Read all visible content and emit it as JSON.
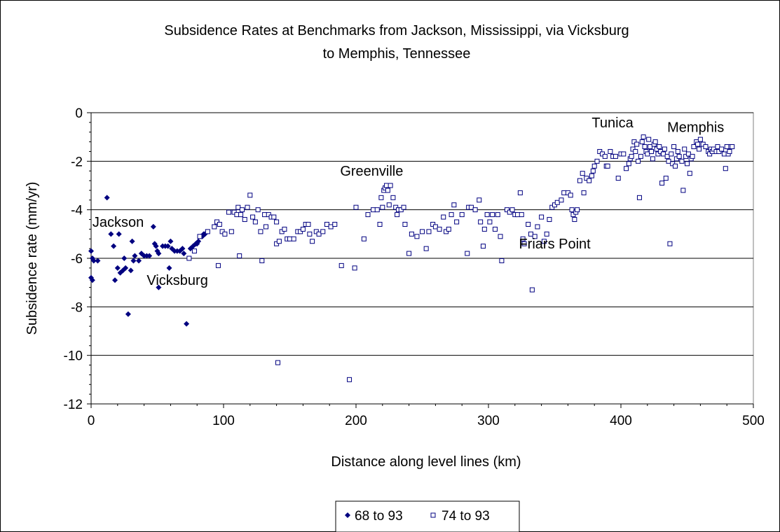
{
  "chart_data": {
    "type": "scatter",
    "title_lines": [
      "Subsidence Rates at Benchmarks from Jackson, Mississippi, via Vicksburg",
      "to Memphis, Tennessee"
    ],
    "xlabel": "Distance along level lines (km)",
    "ylabel": "Subsidence rate (mm/yr)",
    "xlim": [
      0,
      500
    ],
    "ylim": [
      -12,
      0
    ],
    "x_ticks": [
      0,
      100,
      200,
      300,
      400,
      500
    ],
    "y_ticks": [
      0,
      -2,
      -4,
      -6,
      -8,
      -10,
      -12
    ],
    "grid": "horizontal major gridlines",
    "legend_position": "bottom",
    "annotations": [
      {
        "text": "Jackson",
        "x": 1,
        "y": -4.7
      },
      {
        "text": "Vicksburg",
        "x": 42,
        "y": -7.1
      },
      {
        "text": "Greenville",
        "x": 188,
        "y": -2.6
      },
      {
        "text": "Friars Point",
        "x": 323,
        "y": -5.6
      },
      {
        "text": "Tunica",
        "x": 378,
        "y": -0.6
      },
      {
        "text": "Memphis",
        "x": 435,
        "y": -0.8
      }
    ],
    "series": [
      {
        "name": "68 to 93",
        "marker": "diamond-filled",
        "color": "#000080",
        "points": [
          [
            0,
            -5.7
          ],
          [
            1,
            -6.0
          ],
          [
            0,
            -6.8
          ],
          [
            1,
            -6.9
          ],
          [
            2,
            -6.1
          ],
          [
            5,
            -6.1
          ],
          [
            12,
            -3.5
          ],
          [
            15,
            -5.0
          ],
          [
            17,
            -5.5
          ],
          [
            18,
            -6.9
          ],
          [
            20,
            -6.4
          ],
          [
            21,
            -5.0
          ],
          [
            22,
            -6.6
          ],
          [
            24,
            -6.5
          ],
          [
            25,
            -6.0
          ],
          [
            26,
            -6.4
          ],
          [
            28,
            -8.3
          ],
          [
            30,
            -6.5
          ],
          [
            31,
            -5.3
          ],
          [
            32,
            -6.1
          ],
          [
            33,
            -5.9
          ],
          [
            36,
            -6.1
          ],
          [
            38,
            -5.8
          ],
          [
            40,
            -5.9
          ],
          [
            42,
            -5.9
          ],
          [
            44,
            -5.9
          ],
          [
            47,
            -4.7
          ],
          [
            48,
            -5.4
          ],
          [
            49,
            -5.5
          ],
          [
            50,
            -5.7
          ],
          [
            51,
            -5.8
          ],
          [
            51,
            -7.2
          ],
          [
            54,
            -5.5
          ],
          [
            56,
            -5.5
          ],
          [
            58,
            -5.5
          ],
          [
            59,
            -6.4
          ],
          [
            60,
            -5.3
          ],
          [
            61,
            -5.6
          ],
          [
            63,
            -5.7
          ],
          [
            65,
            -5.7
          ],
          [
            67,
            -5.7
          ],
          [
            69,
            -5.6
          ],
          [
            70,
            -5.8
          ],
          [
            72,
            -8.7
          ],
          [
            75,
            -5.6
          ],
          [
            77,
            -5.5
          ],
          [
            79,
            -5.4
          ],
          [
            80,
            -5.4
          ],
          [
            81,
            -5.3
          ],
          [
            83,
            -5.1
          ],
          [
            84,
            -5.1
          ],
          [
            85,
            -5.0
          ],
          [
            86,
            -5.0
          ]
        ]
      },
      {
        "name": "74 to 93",
        "marker": "square-open",
        "color": "#000080",
        "points": [
          [
            74,
            -6.0
          ],
          [
            78,
            -5.7
          ],
          [
            82,
            -5.1
          ],
          [
            88,
            -4.9
          ],
          [
            93,
            -4.7
          ],
          [
            95,
            -4.5
          ],
          [
            96,
            -6.3
          ],
          [
            97,
            -4.6
          ],
          [
            99,
            -4.9
          ],
          [
            101,
            -5.0
          ],
          [
            104,
            -4.1
          ],
          [
            106,
            -4.9
          ],
          [
            108,
            -4.1
          ],
          [
            110,
            -4.2
          ],
          [
            111,
            -3.9
          ],
          [
            112,
            -5.9
          ],
          [
            113,
            -4.2
          ],
          [
            114,
            -4.0
          ],
          [
            116,
            -4.4
          ],
          [
            118,
            -3.9
          ],
          [
            120,
            -3.4
          ],
          [
            122,
            -4.3
          ],
          [
            124,
            -4.5
          ],
          [
            126,
            -4.0
          ],
          [
            128,
            -4.9
          ],
          [
            129,
            -6.1
          ],
          [
            131,
            -4.2
          ],
          [
            132,
            -4.7
          ],
          [
            134,
            -4.2
          ],
          [
            136,
            -4.3
          ],
          [
            138,
            -4.3
          ],
          [
            140,
            -4.5
          ],
          [
            140,
            -5.4
          ],
          [
            141,
            -10.3
          ],
          [
            142,
            -5.3
          ],
          [
            144,
            -4.9
          ],
          [
            146,
            -4.8
          ],
          [
            148,
            -5.2
          ],
          [
            150,
            -5.2
          ],
          [
            153,
            -5.2
          ],
          [
            156,
            -4.9
          ],
          [
            158,
            -4.9
          ],
          [
            160,
            -4.8
          ],
          [
            162,
            -4.6
          ],
          [
            164,
            -4.6
          ],
          [
            165,
            -5.0
          ],
          [
            167,
            -5.3
          ],
          [
            170,
            -4.9
          ],
          [
            172,
            -5.0
          ],
          [
            175,
            -4.9
          ],
          [
            178,
            -4.6
          ],
          [
            181,
            -4.7
          ],
          [
            184,
            -4.6
          ],
          [
            189,
            -6.3
          ],
          [
            195,
            -11.0
          ],
          [
            199,
            -6.4
          ],
          [
            200,
            -3.9
          ],
          [
            206,
            -5.2
          ],
          [
            209,
            -4.2
          ],
          [
            213,
            -4.0
          ],
          [
            216,
            -4.0
          ],
          [
            218,
            -4.6
          ],
          [
            219,
            -3.5
          ],
          [
            220,
            -3.9
          ],
          [
            221,
            -3.2
          ],
          [
            222,
            -3.1
          ],
          [
            223,
            -3.0
          ],
          [
            224,
            -3.2
          ],
          [
            225,
            -3.8
          ],
          [
            226,
            -3.0
          ],
          [
            228,
            -3.5
          ],
          [
            230,
            -3.9
          ],
          [
            231,
            -4.2
          ],
          [
            232,
            -4.0
          ],
          [
            234,
            -4.0
          ],
          [
            236,
            -3.9
          ],
          [
            237,
            -4.6
          ],
          [
            240,
            -5.8
          ],
          [
            242,
            -5.0
          ],
          [
            246,
            -5.1
          ],
          [
            250,
            -4.9
          ],
          [
            253,
            -5.6
          ],
          [
            255,
            -4.9
          ],
          [
            258,
            -4.6
          ],
          [
            260,
            -4.7
          ],
          [
            263,
            -4.8
          ],
          [
            266,
            -4.3
          ],
          [
            268,
            -4.9
          ],
          [
            270,
            -4.8
          ],
          [
            272,
            -4.2
          ],
          [
            274,
            -3.8
          ],
          [
            276,
            -4.5
          ],
          [
            280,
            -4.2
          ],
          [
            284,
            -5.8
          ],
          [
            285,
            -3.9
          ],
          [
            287,
            -3.9
          ],
          [
            290,
            -4.0
          ],
          [
            293,
            -3.6
          ],
          [
            294,
            -4.5
          ],
          [
            296,
            -5.5
          ],
          [
            297,
            -4.8
          ],
          [
            299,
            -4.2
          ],
          [
            301,
            -4.5
          ],
          [
            303,
            -4.2
          ],
          [
            305,
            -4.8
          ],
          [
            307,
            -4.2
          ],
          [
            309,
            -5.1
          ],
          [
            310,
            -6.1
          ],
          [
            314,
            -4.0
          ],
          [
            316,
            -4.1
          ],
          [
            318,
            -4.0
          ],
          [
            320,
            -4.2
          ],
          [
            322,
            -4.2
          ],
          [
            324,
            -3.3
          ],
          [
            325,
            -4.2
          ],
          [
            326,
            -5.2
          ],
          [
            327,
            -5.4
          ],
          [
            330,
            -4.6
          ],
          [
            332,
            -5.0
          ],
          [
            333,
            -7.3
          ],
          [
            335,
            -5.1
          ],
          [
            337,
            -4.7
          ],
          [
            340,
            -4.3
          ],
          [
            342,
            -5.3
          ],
          [
            344,
            -5.0
          ],
          [
            346,
            -4.4
          ],
          [
            348,
            -3.9
          ],
          [
            350,
            -3.8
          ],
          [
            352,
            -3.7
          ],
          [
            355,
            -3.6
          ],
          [
            357,
            -3.3
          ],
          [
            360,
            -3.3
          ],
          [
            362,
            -3.4
          ],
          [
            363,
            -4.0
          ],
          [
            364,
            -4.2
          ],
          [
            365,
            -4.4
          ],
          [
            366,
            -4.1
          ],
          [
            367,
            -4.0
          ],
          [
            369,
            -2.8
          ],
          [
            371,
            -2.5
          ],
          [
            372,
            -3.3
          ],
          [
            374,
            -2.7
          ],
          [
            376,
            -2.8
          ],
          [
            378,
            -2.6
          ],
          [
            379,
            -2.4
          ],
          [
            380,
            -2.2
          ],
          [
            382,
            -2.0
          ],
          [
            384,
            -1.6
          ],
          [
            386,
            -1.7
          ],
          [
            388,
            -1.8
          ],
          [
            389,
            -2.2
          ],
          [
            390,
            -2.2
          ],
          [
            392,
            -1.6
          ],
          [
            394,
            -1.8
          ],
          [
            396,
            -1.8
          ],
          [
            398,
            -2.7
          ],
          [
            400,
            -1.7
          ],
          [
            402,
            -1.7
          ],
          [
            404,
            -2.3
          ],
          [
            406,
            -2.1
          ],
          [
            407,
            -1.9
          ],
          [
            408,
            -1.8
          ],
          [
            409,
            -1.5
          ],
          [
            410,
            -1.2
          ],
          [
            411,
            -1.6
          ],
          [
            412,
            -1.3
          ],
          [
            413,
            -2.0
          ],
          [
            414,
            -3.5
          ],
          [
            415,
            -1.8
          ],
          [
            416,
            -1.2
          ],
          [
            417,
            -1.0
          ],
          [
            418,
            -1.4
          ],
          [
            419,
            -1.6
          ],
          [
            420,
            -1.7
          ],
          [
            421,
            -1.1
          ],
          [
            422,
            -1.4
          ],
          [
            423,
            -1.6
          ],
          [
            424,
            -1.9
          ],
          [
            425,
            -1.3
          ],
          [
            426,
            -1.2
          ],
          [
            427,
            -1.5
          ],
          [
            428,
            -1.7
          ],
          [
            429,
            -1.4
          ],
          [
            430,
            -1.6
          ],
          [
            431,
            -2.9
          ],
          [
            432,
            -1.7
          ],
          [
            433,
            -1.5
          ],
          [
            434,
            -2.7
          ],
          [
            435,
            -1.8
          ],
          [
            436,
            -2.0
          ],
          [
            437,
            -5.4
          ],
          [
            438,
            -1.7
          ],
          [
            439,
            -2.1
          ],
          [
            440,
            -1.4
          ],
          [
            441,
            -2.2
          ],
          [
            442,
            -1.9
          ],
          [
            443,
            -1.6
          ],
          [
            444,
            -1.8
          ],
          [
            446,
            -2.0
          ],
          [
            447,
            -3.2
          ],
          [
            448,
            -1.5
          ],
          [
            449,
            -1.8
          ],
          [
            450,
            -2.1
          ],
          [
            451,
            -1.7
          ],
          [
            452,
            -2.5
          ],
          [
            453,
            -1.9
          ],
          [
            454,
            -1.8
          ],
          [
            455,
            -1.4
          ],
          [
            457,
            -1.2
          ],
          [
            458,
            -1.3
          ],
          [
            459,
            -1.5
          ],
          [
            460,
            -1.1
          ],
          [
            462,
            -1.3
          ],
          [
            464,
            -1.4
          ],
          [
            466,
            -1.6
          ],
          [
            467,
            -1.7
          ],
          [
            468,
            -1.5
          ],
          [
            469,
            -1.6
          ],
          [
            470,
            -1.5
          ],
          [
            472,
            -1.6
          ],
          [
            473,
            -1.4
          ],
          [
            474,
            -1.6
          ],
          [
            476,
            -1.5
          ],
          [
            478,
            -1.7
          ],
          [
            479,
            -2.3
          ],
          [
            480,
            -1.4
          ],
          [
            481,
            -1.7
          ],
          [
            482,
            -1.6
          ],
          [
            483,
            -1.4
          ],
          [
            484,
            -1.4
          ]
        ]
      }
    ]
  }
}
